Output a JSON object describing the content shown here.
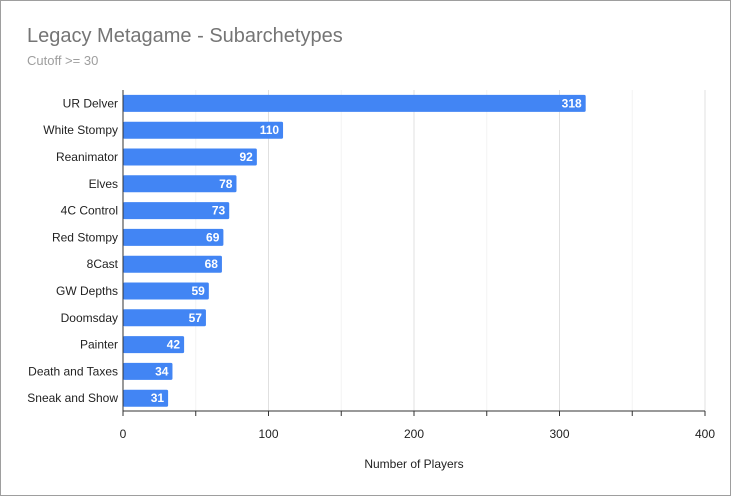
{
  "chart_data": {
    "type": "bar",
    "orientation": "horizontal",
    "title": "Legacy Metagame - Subarchetypes",
    "subtitle": "Cutoff >= 30",
    "xlabel": "Number of Players",
    "ylabel": "",
    "xlim": [
      0,
      400
    ],
    "xticks": [
      0,
      100,
      200,
      300,
      400
    ],
    "grid": true,
    "legend": "none",
    "categories": [
      "UR Delver",
      "White Stompy",
      "Reanimator",
      "Elves",
      "4C Control",
      "Red Stompy",
      "8Cast",
      "GW Depths",
      "Doomsday",
      "Painter",
      "Death and Taxes",
      "Sneak and Show"
    ],
    "values": [
      318,
      110,
      92,
      78,
      73,
      69,
      68,
      59,
      57,
      42,
      34,
      31
    ],
    "colors": {
      "bar": "#4285f4",
      "gridline": "#e0e0e0",
      "minor_gridline": "#f3f3f3",
      "axis": "#333333"
    }
  }
}
